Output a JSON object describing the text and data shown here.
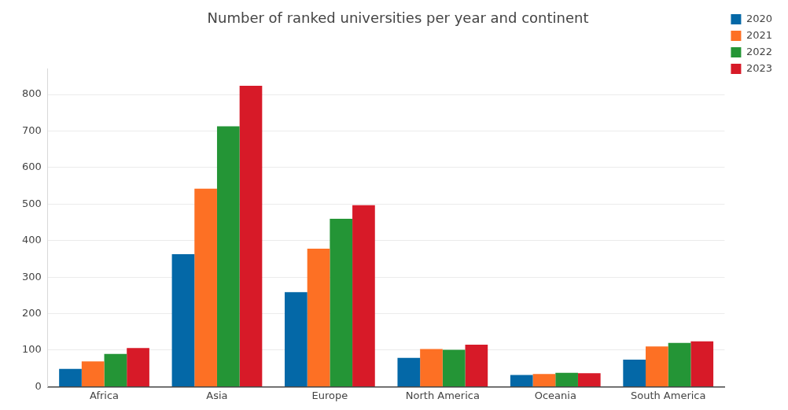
{
  "chart_data": {
    "type": "bar",
    "title": "Number of ranked universities per year and continent",
    "categories": [
      "Africa",
      "Asia",
      "Europe",
      "North America",
      "Oceania",
      "South America"
    ],
    "series": [
      {
        "name": "2020",
        "color": "#0468a7",
        "values": [
          49,
          363,
          259,
          79,
          32,
          74
        ]
      },
      {
        "name": "2021",
        "color": "#fd7024",
        "values": [
          69,
          542,
          378,
          103,
          35,
          110
        ]
      },
      {
        "name": "2022",
        "color": "#249536",
        "values": [
          90,
          713,
          460,
          101,
          38,
          120
        ]
      },
      {
        "name": "2023",
        "color": "#d71a28",
        "values": [
          106,
          824,
          497,
          115,
          37,
          124
        ]
      }
    ],
    "ylim": [
      0,
      870
    ],
    "yticks": [
      0,
      100,
      200,
      300,
      400,
      500,
      600,
      700,
      800
    ],
    "grid": "y",
    "legend": "top right"
  }
}
